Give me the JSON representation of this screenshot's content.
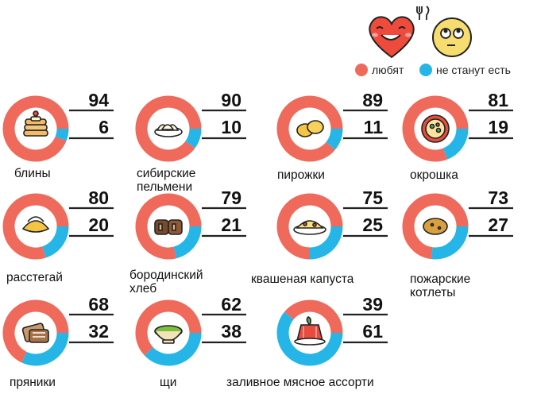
{
  "legend": {
    "loves_label": "любят",
    "wont_eat_label": "не станут есть",
    "loves_color": "#ef6a5b",
    "wont_eat_color": "#25b6e7",
    "icons": [
      "heart-face-icon",
      "fork-knife-icon",
      "rolling-eyes-face-icon"
    ]
  },
  "chart_data": {
    "type": "donut",
    "series": [
      {
        "name": "любят",
        "color": "#ef6a5b"
      },
      {
        "name": "не станут есть",
        "color": "#25b6e7"
      }
    ],
    "items": [
      {
        "label": "блины",
        "loves": 94,
        "wont": 6,
        "icon": "pancakes-icon"
      },
      {
        "label": "сибирские\nпельмени",
        "loves": 90,
        "wont": 10,
        "icon": "dumplings-icon"
      },
      {
        "label": "пирожки",
        "loves": 89,
        "wont": 11,
        "icon": "pies-icon"
      },
      {
        "label": "окрошка",
        "loves": 81,
        "wont": 19,
        "icon": "soup-bowl-icon"
      },
      {
        "label": "расстегай",
        "loves": 80,
        "wont": 20,
        "icon": "rasstegai-icon"
      },
      {
        "label": "бородинский\nхлеб",
        "loves": 79,
        "wont": 21,
        "icon": "bread-icon"
      },
      {
        "label": "квашеная капуста",
        "loves": 75,
        "wont": 25,
        "icon": "sauerkraut-icon"
      },
      {
        "label": "пожарские\nкотлеты",
        "loves": 73,
        "wont": 27,
        "icon": "cutlet-icon"
      },
      {
        "label": "пряники",
        "loves": 68,
        "wont": 32,
        "icon": "gingerbread-icon"
      },
      {
        "label": "щи",
        "loves": 62,
        "wont": 38,
        "icon": "shchi-bowl-icon"
      },
      {
        "label": "заливное мясное ассорти",
        "loves": 39,
        "wont": 61,
        "icon": "aspic-icon"
      }
    ]
  }
}
